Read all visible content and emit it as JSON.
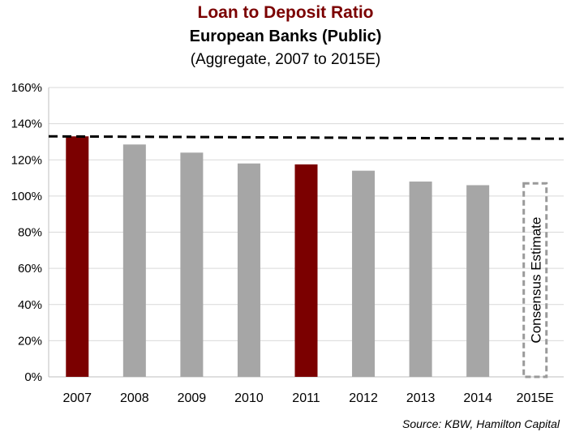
{
  "header": {
    "title": "Loan to Deposit Ratio",
    "subtitle": "European Banks (Public)",
    "subtitle2": "(Aggregate, 2007 to 2015E)"
  },
  "source": "Source: KBW, Hamilton Capital",
  "chart_data": {
    "type": "bar",
    "categories": [
      "2007",
      "2008",
      "2009",
      "2010",
      "2011",
      "2012",
      "2013",
      "2014",
      "2015E"
    ],
    "values": [
      133,
      128.5,
      124,
      118,
      117.5,
      114,
      108,
      106,
      107
    ],
    "value_format": "percent",
    "ylim": [
      0,
      160
    ],
    "y_ticks": [
      0,
      20,
      40,
      60,
      80,
      100,
      120,
      140,
      160
    ],
    "y_tick_labels": [
      "0%",
      "20%",
      "40%",
      "60%",
      "80%",
      "100%",
      "120%",
      "140%",
      "160%"
    ],
    "grid": true,
    "reference_line": {
      "value": 133,
      "style": "dashed",
      "color": "#000000"
    },
    "bar_colors": [
      "#7b0000",
      "#a6a6a6",
      "#a6a6a6",
      "#a6a6a6",
      "#7b0000",
      "#a6a6a6",
      "#a6a6a6",
      "#a6a6a6",
      "none"
    ],
    "highlight_color": "#7b0000",
    "default_color": "#a6a6a6",
    "estimate": {
      "category": "2015E",
      "label": "Consensus Estimate",
      "style": "dashed-outline",
      "color": "#9a9a9a"
    }
  }
}
